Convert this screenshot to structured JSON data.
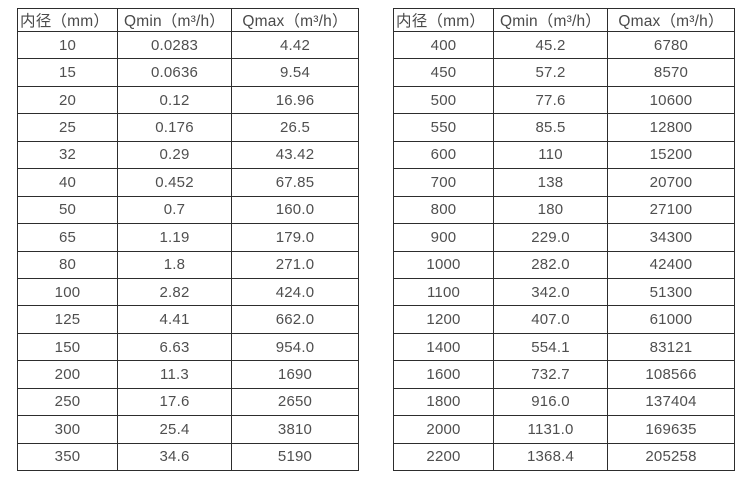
{
  "page": {
    "background": "#ffffff",
    "text_color": "#4f4f4f",
    "border_color": "#2d2d2d"
  },
  "tables": [
    {
      "title": "small-diameter-flow-table",
      "headers": [
        "内径（mm）",
        "Qmin（m³/h）",
        "Qmax（m³/h）"
      ],
      "rows": [
        [
          "10",
          "0.0283",
          "4.42"
        ],
        [
          "15",
          "0.0636",
          "9.54"
        ],
        [
          "20",
          "0.12",
          "16.96"
        ],
        [
          "25",
          "0.176",
          "26.5"
        ],
        [
          "32",
          "0.29",
          "43.42"
        ],
        [
          "40",
          "0.452",
          "67.85"
        ],
        [
          "50",
          "0.7",
          "160.0"
        ],
        [
          "65",
          "1.19",
          "179.0"
        ],
        [
          "80",
          "1.8",
          "271.0"
        ],
        [
          "100",
          "2.82",
          "424.0"
        ],
        [
          "125",
          "4.41",
          "662.0"
        ],
        [
          "150",
          "6.63",
          "954.0"
        ],
        [
          "200",
          "11.3",
          "1690"
        ],
        [
          "250",
          "17.6",
          "2650"
        ],
        [
          "300",
          "25.4",
          "3810"
        ],
        [
          "350",
          "34.6",
          "5190"
        ]
      ]
    },
    {
      "title": "large-diameter-flow-table",
      "headers": [
        "内径（mm）",
        "Qmin（m³/h）",
        "Qmax（m³/h）"
      ],
      "rows": [
        [
          "400",
          "45.2",
          "6780"
        ],
        [
          "450",
          "57.2",
          "8570"
        ],
        [
          "500",
          "77.6",
          "10600"
        ],
        [
          "550",
          "85.5",
          "12800"
        ],
        [
          "600",
          "110",
          "15200"
        ],
        [
          "700",
          "138",
          "20700"
        ],
        [
          "800",
          "180",
          "27100"
        ],
        [
          "900",
          "229.0",
          "34300"
        ],
        [
          "1000",
          "282.0",
          "42400"
        ],
        [
          "1100",
          "342.0",
          "51300"
        ],
        [
          "1200",
          "407.0",
          "61000"
        ],
        [
          "1400",
          "554.1",
          "83121"
        ],
        [
          "1600",
          "732.7",
          "108566"
        ],
        [
          "1800",
          "916.0",
          "137404"
        ],
        [
          "2000",
          "1131.0",
          "169635"
        ],
        [
          "2200",
          "1368.4",
          "205258"
        ]
      ]
    }
  ]
}
